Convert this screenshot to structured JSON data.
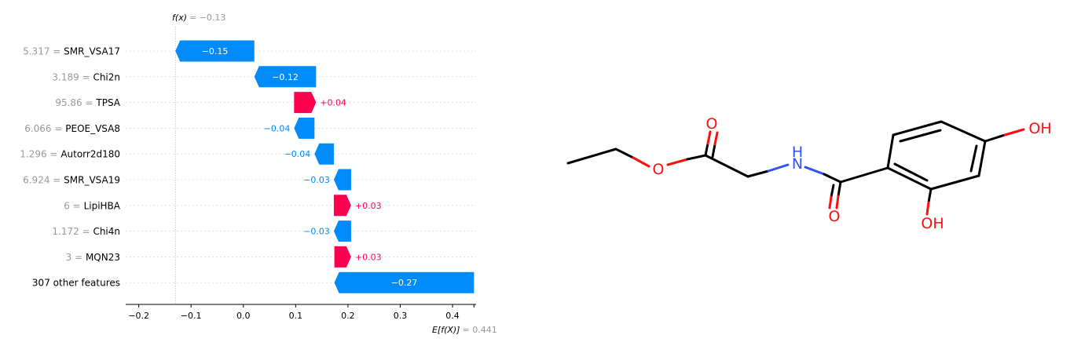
{
  "chart_data": {
    "type": "waterfall",
    "fx_label_prefix": "f(x)",
    "fx_value_text": "= −0.13",
    "fx": -0.13,
    "ex_label_prefix": "E[f(X)]",
    "ex_value_text": "= 0.441",
    "ex": 0.441,
    "xlim": [
      -0.225,
      0.445
    ],
    "xticks": [
      {
        "value": -0.2,
        "label": "−0.2"
      },
      {
        "value": -0.1,
        "label": "−0.1"
      },
      {
        "value": 0.0,
        "label": "0.0"
      },
      {
        "value": 0.1,
        "label": "0.1"
      },
      {
        "value": 0.2,
        "label": "0.2"
      },
      {
        "value": 0.3,
        "label": "0.3"
      },
      {
        "value": 0.4,
        "label": "0.4"
      }
    ],
    "rows": [
      {
        "value_text": "5.317 =",
        "feature": "SMR_VSA17",
        "shap": -0.15,
        "start": 0.021,
        "end": -0.13,
        "label": "−0.15",
        "label_inside": true
      },
      {
        "value_text": "3.189 =",
        "feature": "Chi2n",
        "shap": -0.12,
        "start": 0.139,
        "end": 0.021,
        "label": "−0.12",
        "label_inside": true
      },
      {
        "value_text": "95.86 =",
        "feature": "TPSA",
        "shap": 0.04,
        "start": 0.097,
        "end": 0.139,
        "label": "+0.04",
        "label_inside": false
      },
      {
        "value_text": "6.066 =",
        "feature": "PEOE_VSA8",
        "shap": -0.04,
        "start": 0.136,
        "end": 0.097,
        "label": "−0.04",
        "label_inside": false
      },
      {
        "value_text": "1.296 =",
        "feature": "Autorr2d180",
        "shap": -0.04,
        "start": 0.173,
        "end": 0.136,
        "label": "−0.04",
        "label_inside": false
      },
      {
        "value_text": "6.924 =",
        "feature": "SMR_VSA19",
        "shap": -0.03,
        "start": 0.206,
        "end": 0.173,
        "label": "−0.03",
        "label_inside": false
      },
      {
        "value_text": "6 =",
        "feature": "LipiHBA",
        "shap": 0.03,
        "start": 0.173,
        "end": 0.206,
        "label": "+0.03",
        "label_inside": false
      },
      {
        "value_text": "1.172 =",
        "feature": "Chi4n",
        "shap": -0.03,
        "start": 0.206,
        "end": 0.173,
        "label": "−0.03",
        "label_inside": false
      },
      {
        "value_text": "3 =",
        "feature": "MQN23",
        "shap": 0.03,
        "start": 0.174,
        "end": 0.206,
        "label": "+0.03",
        "label_inside": false
      },
      {
        "value_text": "",
        "feature": "307 other features",
        "shap": -0.27,
        "start": 0.441,
        "end": 0.174,
        "label": "−0.27",
        "label_inside": true
      }
    ],
    "colors": {
      "negative": "#008bfb",
      "positive": "#ff0051",
      "value_grey": "#999999",
      "text": "#000000",
      "gridline": "#cccccc"
    }
  },
  "molecule": {
    "atom_labels": {
      "ester_oxygen": "O",
      "carbonyl_oxygen_1": "O",
      "amide_nitrogen": "H\nN",
      "carbonyl_oxygen_2": "O",
      "hydroxyl_para": "OH",
      "hydroxyl_ortho": "OH"
    },
    "colors": {
      "bond": "#000000",
      "oxygen": "#ff0d0d",
      "nitrogen": "#3050f8"
    }
  }
}
